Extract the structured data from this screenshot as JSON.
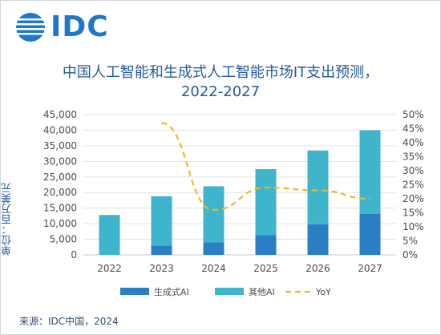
{
  "logo": {
    "text": "IDC"
  },
  "title_line1": "中国人工智能和生成式人工智能市场IT支出预测，",
  "title_line2": "2022-2027",
  "unit_label": "单位：百万美元",
  "source": "来源：IDC中国，2024",
  "colors": {
    "genai": "#2a7fc4",
    "other_ai": "#3fb5cc",
    "yoy": "#f2b720",
    "title": "#245a9b"
  },
  "chart_data": {
    "type": "bar",
    "stacked": true,
    "categories": [
      "2022",
      "2023",
      "2024",
      "2025",
      "2026",
      "2027"
    ],
    "series": [
      {
        "name": "生成式AI",
        "values": [
          0,
          3000,
          4000,
          6300,
          9800,
          13200
        ]
      },
      {
        "name": "其他AI",
        "values": [
          12800,
          15800,
          18000,
          21200,
          23700,
          26800
        ]
      }
    ],
    "line_series": {
      "name": "YoY",
      "axis": "right",
      "x": [
        "2023",
        "2024",
        "2025",
        "2026",
        "2027"
      ],
      "values": [
        47,
        16,
        24,
        23,
        20
      ]
    },
    "y_ticks": [
      "0",
      "5,000",
      "10,000",
      "15,000",
      "20,000",
      "25,000",
      "30,000",
      "35,000",
      "40,000",
      "45,000"
    ],
    "ylim": [
      0,
      45000
    ],
    "y2_ticks": [
      "0%",
      "5%",
      "10%",
      "15%",
      "20%",
      "25%",
      "30%",
      "35%",
      "40%",
      "45%",
      "50%"
    ],
    "y2lim": [
      0,
      50
    ],
    "legend": "bottom",
    "grid": true
  }
}
